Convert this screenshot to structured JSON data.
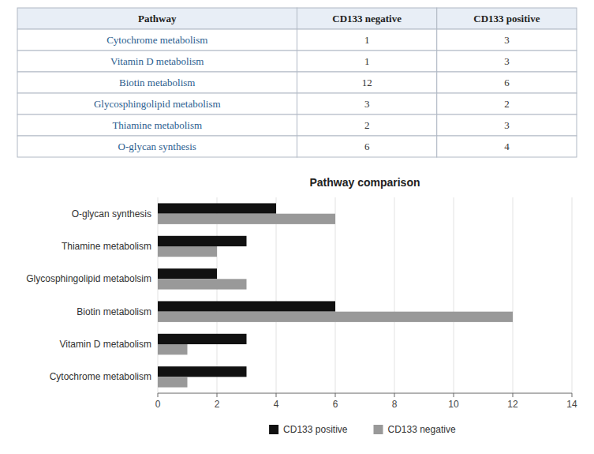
{
  "chart_data": [
    {
      "type": "table",
      "header": [
        "Pathway",
        "CD133 negative",
        "CD133 positive"
      ],
      "rows": [
        [
          "Cytochrome metabolism",
          1,
          3
        ],
        [
          "Vitamin D metabolism",
          1,
          3
        ],
        [
          "Biotin metabolism",
          12,
          6
        ],
        [
          "Glycosphingolipid metabolism",
          3,
          2
        ],
        [
          "Thiamine metabolism",
          2,
          3
        ],
        [
          "O-glycan synthesis",
          6,
          4
        ]
      ]
    },
    {
      "type": "bar",
      "title": "Pathway comparison",
      "orientation": "horizontal",
      "categories": [
        "Cytochrome metabolism",
        "Vitamin D metabolism",
        "Biotin metabolism",
        "Glycosphingolipid metabolsim",
        "Thiamine metabolism",
        "O-glycan synthesis"
      ],
      "series": [
        {
          "name": "CD133 positive",
          "color": "#111111",
          "values": [
            3,
            3,
            6,
            2,
            3,
            4
          ]
        },
        {
          "name": "CD133 negative",
          "color": "#999999",
          "values": [
            1,
            1,
            12,
            3,
            2,
            6
          ]
        }
      ],
      "xlim": [
        0,
        14
      ],
      "xticks": [
        0,
        2,
        4,
        6,
        8,
        10,
        12,
        14
      ],
      "grid": true,
      "legend": "bottom"
    }
  ]
}
